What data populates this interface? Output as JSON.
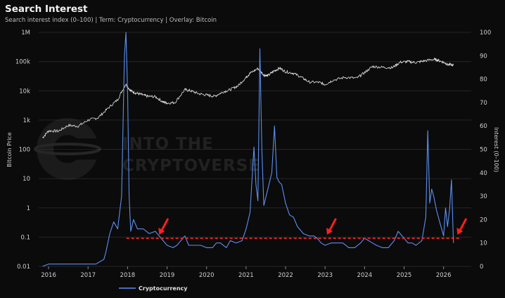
{
  "title": "Search Interest",
  "subtitle": "Search interest index (0–100) | Term: Cryptocurrency | Overlay: Bitcoin",
  "watermark": {
    "line1": "INTO THE",
    "line2": "CRYPTOVERSE"
  },
  "colors": {
    "background": "#0b0b0b",
    "interest": "#5b8ff0",
    "price": "#e8e8e8",
    "threshold": "#ff2a2a",
    "arrow": "#ff1f1f"
  },
  "chart_data": {
    "type": "line",
    "title": "Search Interest",
    "xlabel": "",
    "left_axis": {
      "label": "Bitcoin Price",
      "scale": "log",
      "range": [
        0.01,
        1000000
      ],
      "ticks": [
        0.01,
        0.1,
        1,
        10,
        100,
        1000,
        10000,
        100000,
        1000000
      ],
      "tick_labels": [
        "0.01",
        "0.1",
        "1",
        "10",
        "100",
        "1k",
        "10k",
        "100k",
        "1M"
      ]
    },
    "right_axis": {
      "label": "Interest (0–100)",
      "scale": "linear",
      "range": [
        0,
        100
      ],
      "ticks": [
        0,
        10,
        20,
        30,
        40,
        50,
        60,
        70,
        80,
        90,
        100
      ]
    },
    "x_axis": {
      "range": [
        2015.75,
        2026.7
      ],
      "ticks": [
        "2016",
        "2017",
        "2018",
        "2019",
        "2020",
        "2021",
        "2022",
        "2023",
        "2024",
        "2025",
        "2026"
      ]
    },
    "legend": {
      "placement": "bottom-left",
      "entries": [
        "Cryptocurrency"
      ]
    },
    "series": [
      {
        "name": "Cryptocurrency",
        "axis": "right",
        "x": [
          2015.85,
          2016.0,
          2016.5,
          2016.9,
          2017.2,
          2017.4,
          2017.45,
          2017.55,
          2017.65,
          2017.75,
          2017.85,
          2017.88,
          2017.92,
          2017.96,
          2018.0,
          2018.04,
          2018.08,
          2018.15,
          2018.25,
          2018.4,
          2018.55,
          2018.7,
          2018.85,
          2019.0,
          2019.15,
          2019.25,
          2019.35,
          2019.45,
          2019.55,
          2019.7,
          2019.85,
          2020.0,
          2020.15,
          2020.25,
          2020.35,
          2020.5,
          2020.6,
          2020.75,
          2020.9,
          2021.0,
          2021.1,
          2021.2,
          2021.25,
          2021.3,
          2021.35,
          2021.4,
          2021.45,
          2021.55,
          2021.65,
          2021.72,
          2021.78,
          2021.84,
          2021.9,
          2022.0,
          2022.1,
          2022.2,
          2022.3,
          2022.45,
          2022.6,
          2022.72,
          2022.8,
          2022.9,
          2023.0,
          2023.15,
          2023.3,
          2023.45,
          2023.6,
          2023.75,
          2023.9,
          2024.0,
          2024.1,
          2024.2,
          2024.3,
          2024.45,
          2024.6,
          2024.75,
          2024.85,
          2025.0,
          2025.1,
          2025.2,
          2025.3,
          2025.45,
          2025.5,
          2025.55,
          2025.6,
          2025.65,
          2025.7,
          2025.75,
          2025.82,
          2025.9,
          2026.0,
          2026.05,
          2026.1,
          2026.15,
          2026.2,
          2026.25
        ],
        "values": [
          0,
          1,
          1,
          1,
          1,
          3,
          6,
          14,
          19,
          16,
          30,
          55,
          90,
          100,
          75,
          30,
          15,
          20,
          16,
          16,
          14,
          15,
          12,
          9,
          8,
          9,
          11,
          13,
          9,
          9,
          9,
          8,
          8,
          10,
          10,
          8,
          11,
          10,
          11,
          16,
          23,
          51,
          35,
          28,
          93,
          50,
          26,
          33,
          40,
          60,
          38,
          36,
          35,
          27,
          22,
          21,
          17,
          14,
          13,
          13,
          12,
          10,
          9,
          10,
          10,
          10,
          8,
          8,
          10,
          12,
          11,
          10,
          9,
          8,
          8,
          11,
          15,
          12,
          10,
          10,
          9,
          11,
          16,
          21,
          58,
          27,
          33,
          30,
          24,
          19,
          13,
          25,
          17,
          24,
          37,
          10
        ]
      },
      {
        "name": "Bitcoin",
        "axis": "left",
        "x": [
          2015.85,
          2016.0,
          2016.25,
          2016.5,
          2016.75,
          2017.0,
          2017.25,
          2017.5,
          2017.75,
          2017.95,
          2018.08,
          2018.2,
          2018.35,
          2018.5,
          2018.7,
          2018.9,
          2019.0,
          2019.2,
          2019.45,
          2019.6,
          2019.8,
          2020.0,
          2020.2,
          2020.4,
          2020.6,
          2020.8,
          2021.0,
          2021.1,
          2021.3,
          2021.45,
          2021.55,
          2021.7,
          2021.85,
          2022.0,
          2022.2,
          2022.4,
          2022.6,
          2022.85,
          2023.0,
          2023.2,
          2023.5,
          2023.8,
          2024.0,
          2024.2,
          2024.45,
          2024.7,
          2024.9,
          2025.1,
          2025.3,
          2025.5,
          2025.75,
          2025.85,
          2026.0,
          2026.1,
          2026.25
        ],
        "values": [
          250,
          430,
          420,
          660,
          620,
          1000,
          1200,
          2500,
          5000,
          17000,
          10000,
          8500,
          7500,
          6500,
          6300,
          4200,
          3800,
          4000,
          11000,
          10000,
          8000,
          7200,
          6500,
          9000,
          11000,
          15000,
          29000,
          40000,
          58000,
          35000,
          33000,
          47000,
          60000,
          45000,
          40000,
          29000,
          20000,
          19500,
          16500,
          23000,
          29000,
          27000,
          42000,
          68000,
          64000,
          62000,
          95000,
          100000,
          93000,
          105000,
          120000,
          112000,
          95000,
          80000,
          75000
        ]
      }
    ],
    "threshold_line": {
      "value": 12,
      "axis": "right",
      "style": "dashed"
    },
    "arrows": [
      2018.8,
      2023.05,
      2026.35
    ]
  }
}
